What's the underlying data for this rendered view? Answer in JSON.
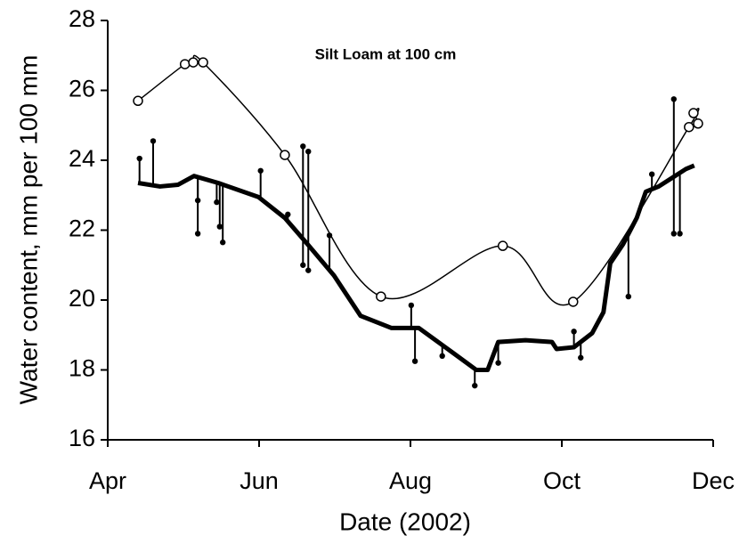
{
  "chart_data": {
    "type": "line",
    "title": "Silt Loam at 100 cm",
    "x_label": "Date (2002)",
    "y_label": "Water content, mm per 100 mm",
    "xlim": [
      4,
      12
    ],
    "xticks": [
      {
        "value": 4,
        "label": "Apr"
      },
      {
        "value": 6,
        "label": "Jun"
      },
      {
        "value": 8,
        "label": "Aug"
      },
      {
        "value": 10,
        "label": "Oct"
      },
      {
        "value": 12,
        "label": "Dec"
      }
    ],
    "ylim": [
      16,
      28
    ],
    "yticks": [
      16,
      18,
      20,
      22,
      24,
      26,
      28
    ],
    "series": [
      {
        "color": "#000000",
        "marker": "open-circle",
        "line_width": 1.5,
        "x": [
          4.4,
          5.02,
          5.13,
          5.26,
          6.34,
          7.61,
          9.22,
          10.15,
          11.68,
          11.74,
          11.8
        ],
        "values": [
          25.7,
          26.75,
          26.8,
          26.8,
          24.15,
          20.1,
          21.55,
          19.95,
          24.95,
          25.35,
          25.05
        ]
      },
      {
        "color": "#000000",
        "marker": "none",
        "line_width": 5,
        "x": [
          4.4,
          4.69,
          4.93,
          5.14,
          5.46,
          5.99,
          6.34,
          6.64,
          6.99,
          7.34,
          7.75,
          8.11,
          8.46,
          8.87,
          9.02,
          9.16,
          9.52,
          9.87,
          9.93,
          10.16,
          10.4,
          10.55,
          10.64,
          10.81,
          10.99,
          11.11,
          11.28,
          11.46,
          11.64,
          11.75
        ],
        "values": [
          23.35,
          23.25,
          23.3,
          23.55,
          23.35,
          22.95,
          22.35,
          21.6,
          20.7,
          19.55,
          19.2,
          19.2,
          18.65,
          18.0,
          18.0,
          18.8,
          18.85,
          18.8,
          18.6,
          18.65,
          19.05,
          19.65,
          21.05,
          21.6,
          22.35,
          23.1,
          23.25,
          23.5,
          23.75,
          23.85
        ]
      },
      {
        "color": "#000000",
        "marker": "dot",
        "line_width": 0,
        "x": [
          4.42,
          4.6,
          5.19,
          5.19,
          5.44,
          5.48,
          5.52,
          6.02,
          6.38,
          6.58,
          6.58,
          6.65,
          6.65,
          6.93,
          8.01,
          8.06,
          8.42,
          8.85,
          9.16,
          10.16,
          10.25,
          10.88,
          11.19,
          11.48,
          11.48,
          11.56
        ],
        "values": [
          24.05,
          24.55,
          22.85,
          21.9,
          22.8,
          22.1,
          21.65,
          23.7,
          22.45,
          24.4,
          21.0,
          20.85,
          24.25,
          21.85,
          19.85,
          18.25,
          18.4,
          17.55,
          18.2,
          19.1,
          18.35,
          20.1,
          23.6,
          25.75,
          21.9,
          21.9
        ]
      }
    ]
  }
}
